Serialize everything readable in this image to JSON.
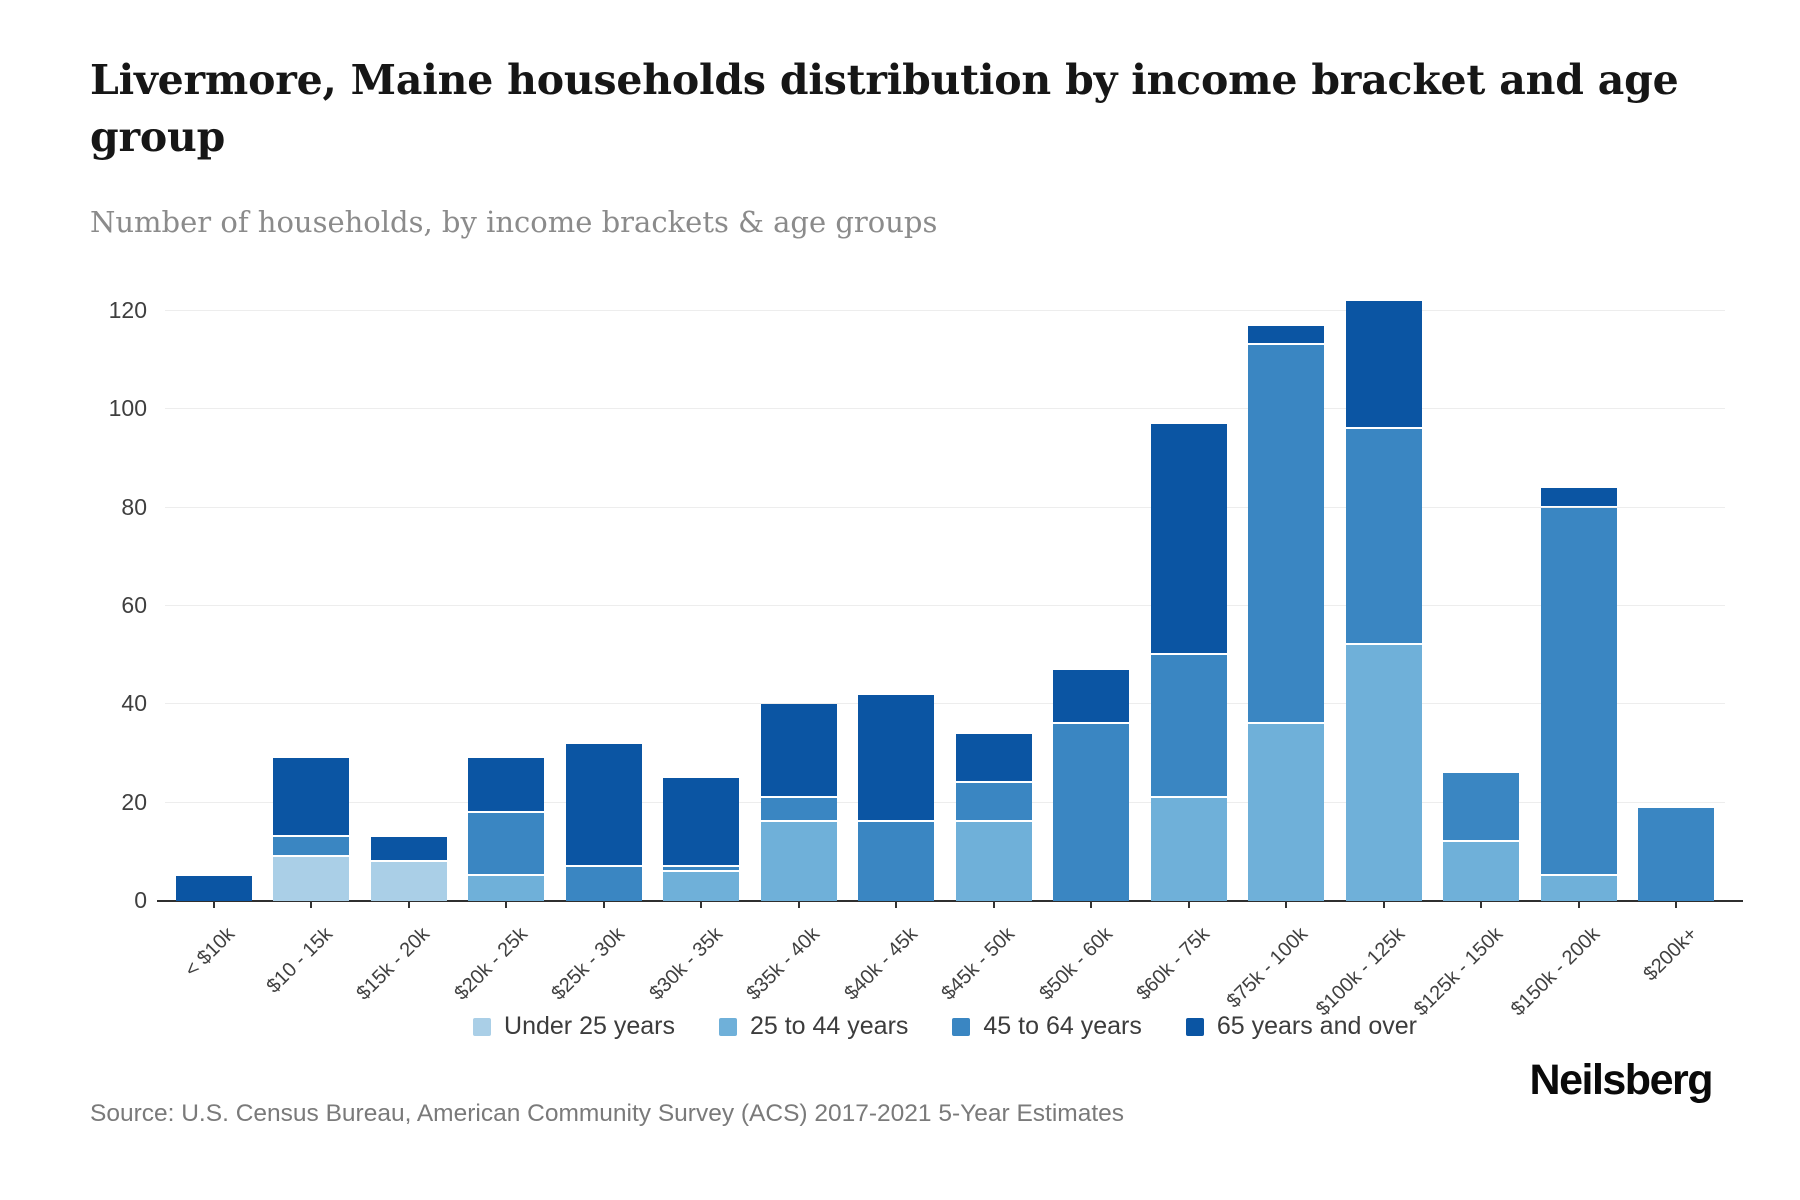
{
  "header": {
    "title": "Livermore, Maine households distribution by income bracket and age group",
    "subtitle": "Number of households, by income brackets & age groups"
  },
  "footer": {
    "source": "Source: U.S. Census Bureau, American Community Survey (ACS) 2017-2021 5-Year Estimates",
    "brand": "Neilsberg"
  },
  "colors": {
    "grid": "#ededed",
    "axis_line": "#2f2f2f",
    "tick": "#333333",
    "y_label": "#3f3f3f",
    "x_label": "#404040",
    "segment_separator": "#ffffff"
  },
  "chart_data": {
    "type": "bar",
    "stacked": true,
    "title": "Livermore, Maine households distribution by income bracket and age group",
    "xlabel": "",
    "ylabel": "Number of households",
    "ylim": [
      0,
      120
    ],
    "ytick_step": 20,
    "ytick_values": [
      0,
      20,
      40,
      60,
      80,
      100,
      120
    ],
    "grid": true,
    "legend_position": "bottom",
    "categories": [
      "< $10k",
      "$10 - 15k",
      "$15k - 20k",
      "$20k - 25k",
      "$25k - 30k",
      "$30k - 35k",
      "$35k - 40k",
      "$40k - 45k",
      "$45k - 50k",
      "$50k - 60k",
      "$60k - 75k",
      "$75k - 100k",
      "$100k - 125k",
      "$125k - 150k",
      "$150k - 200k",
      "$200k+"
    ],
    "series": [
      {
        "name": "Under 25 years",
        "color": "#aacfe7",
        "values": [
          0,
          9,
          8,
          0,
          0,
          0,
          0,
          0,
          0,
          0,
          0,
          0,
          0,
          0,
          0,
          0
        ]
      },
      {
        "name": "25 to 44 years",
        "color": "#6fb0d9",
        "values": [
          0,
          0,
          0,
          5,
          0,
          6,
          16,
          0,
          16,
          0,
          21,
          36,
          52,
          12,
          5,
          0
        ]
      },
      {
        "name": "45 to 64 years",
        "color": "#3a86c2",
        "values": [
          0,
          4,
          0,
          13,
          7,
          1,
          5,
          16,
          8,
          36,
          29,
          77,
          44,
          14,
          75,
          19
        ]
      },
      {
        "name": "65 years and over",
        "color": "#0b55a3",
        "values": [
          5,
          16,
          5,
          11,
          25,
          18,
          19,
          26,
          10,
          11,
          47,
          4,
          26,
          0,
          4,
          0
        ]
      }
    ],
    "totals": [
      5,
      29,
      13,
      29,
      32,
      25,
      40,
      42,
      34,
      47,
      97,
      117,
      122,
      26,
      84,
      19
    ]
  }
}
